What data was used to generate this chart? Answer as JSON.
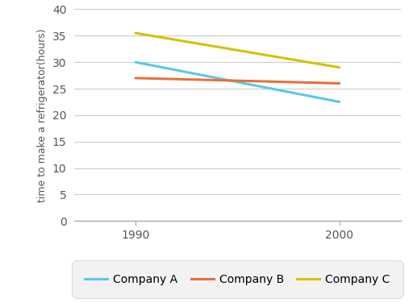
{
  "years": [
    1990,
    2000
  ],
  "companies": {
    "Company A": {
      "values": [
        30,
        22.5
      ],
      "color": "#5bc8e8"
    },
    "Company B": {
      "values": [
        27,
        26
      ],
      "color": "#e8703a"
    },
    "Company C": {
      "values": [
        35.5,
        29
      ],
      "color": "#d4c200"
    }
  },
  "ylabel": "time to make a refrigerator(hours)",
  "ylim": [
    0,
    40
  ],
  "yticks": [
    0,
    5,
    10,
    15,
    20,
    25,
    30,
    35,
    40
  ],
  "xticks": [
    1990,
    2000
  ],
  "xlim": [
    1987,
    2003
  ],
  "background_color": "#ffffff",
  "plot_bg_color": "#ffffff",
  "grid_color": "#cccccc",
  "legend_box_color": "#f2f2f2",
  "legend_edge_color": "#dddddd",
  "line_width": 2.2,
  "ylabel_fontsize": 9,
  "tick_fontsize": 10,
  "legend_fontsize": 10,
  "tick_color": "#555555",
  "spine_color": "#aaaaaa"
}
